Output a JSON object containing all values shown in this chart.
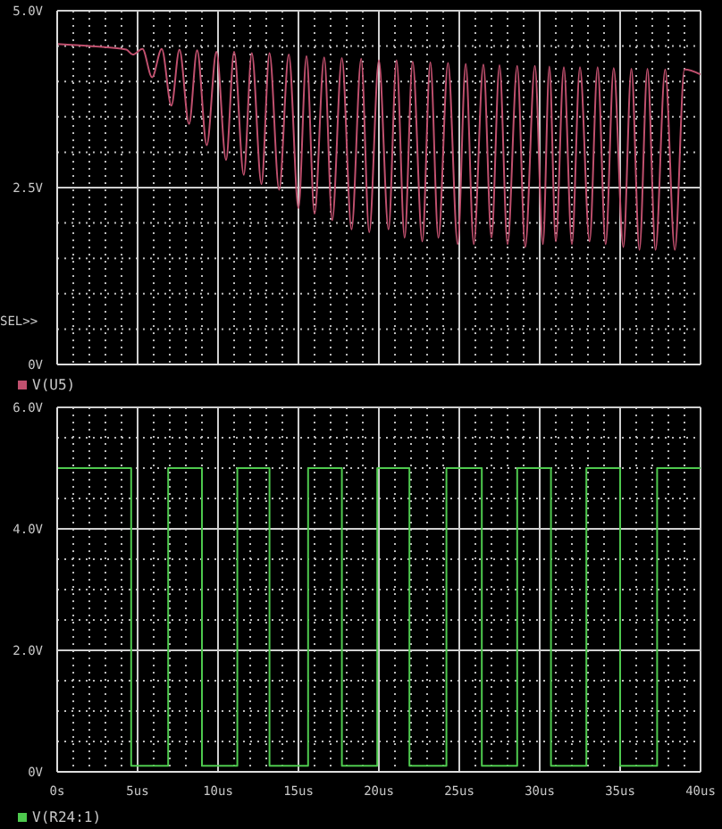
{
  "chart_data": [
    {
      "type": "line",
      "x": [
        0,
        2,
        4.3,
        4.7,
        5.3,
        5.9,
        6.5,
        7.1,
        7.6,
        8.2,
        8.7,
        9.3,
        9.9,
        10.5,
        11.0,
        11.6,
        12.1,
        12.7,
        13.2,
        13.8,
        14.4,
        15.0,
        15.5,
        16.0,
        16.6,
        17.1,
        17.7,
        18.3,
        18.9,
        19.4,
        20.0,
        20.6,
        21.1,
        21.6,
        22.1,
        22.7,
        23.2,
        23.7,
        24.3,
        24.9,
        25.4,
        25.9,
        26.5,
        27.0,
        27.5,
        28.0,
        28.6,
        29.1,
        29.7,
        30.2,
        30.6,
        31.0,
        31.5,
        32.0,
        32.5,
        33.1,
        33.6,
        34.1,
        34.6,
        35.2,
        35.7,
        36.2,
        36.7,
        37.2,
        37.8,
        38.4,
        39.0,
        40
      ],
      "series": [
        {
          "name": "V(U5)",
          "color": "#c0506e",
          "values": [
            4.53,
            4.5,
            4.45,
            4.38,
            4.46,
            4.06,
            4.46,
            3.66,
            4.45,
            3.4,
            4.44,
            3.1,
            4.42,
            2.89,
            4.42,
            2.68,
            4.4,
            2.55,
            4.4,
            2.47,
            4.38,
            2.21,
            4.36,
            2.13,
            4.34,
            2.04,
            4.33,
            1.91,
            4.32,
            1.87,
            4.3,
            1.91,
            4.3,
            1.79,
            4.28,
            1.74,
            4.27,
            1.79,
            4.26,
            1.7,
            4.25,
            1.7,
            4.24,
            1.79,
            4.23,
            1.7,
            4.22,
            1.66,
            4.22,
            1.7,
            4.21,
            1.74,
            4.2,
            1.7,
            4.2,
            1.74,
            4.2,
            1.7,
            4.19,
            1.66,
            4.18,
            1.62,
            4.18,
            1.62,
            4.17,
            1.62,
            4.17,
            4.1
          ]
        }
      ],
      "xlim": [
        0,
        40
      ],
      "xticks": [
        {
          "value": 0,
          "label": null
        },
        {
          "value": 1,
          "label": null
        },
        {
          "value": 2,
          "label": null
        },
        {
          "value": 3,
          "label": null
        },
        {
          "value": 4,
          "label": null
        },
        {
          "value": 5,
          "label": null
        },
        {
          "value": 6,
          "label": null
        },
        {
          "value": 7,
          "label": null
        },
        {
          "value": 8,
          "label": null
        },
        {
          "value": 9,
          "label": null
        },
        {
          "value": 10,
          "label": null
        },
        {
          "value": 11,
          "label": null
        },
        {
          "value": 12,
          "label": null
        },
        {
          "value": 13,
          "label": null
        },
        {
          "value": 14,
          "label": null
        },
        {
          "value": 15,
          "label": null
        },
        {
          "value": 16,
          "label": null
        },
        {
          "value": 17,
          "label": null
        },
        {
          "value": 18,
          "label": null
        },
        {
          "value": 19,
          "label": null
        },
        {
          "value": 20,
          "label": null
        },
        {
          "value": 21,
          "label": null
        },
        {
          "value": 22,
          "label": null
        },
        {
          "value": 23,
          "label": null
        },
        {
          "value": 24,
          "label": null
        },
        {
          "value": 25,
          "label": null
        },
        {
          "value": 26,
          "label": null
        },
        {
          "value": 27,
          "label": null
        },
        {
          "value": 28,
          "label": null
        },
        {
          "value": 29,
          "label": null
        },
        {
          "value": 30,
          "label": null
        },
        {
          "value": 31,
          "label": null
        },
        {
          "value": 32,
          "label": null
        },
        {
          "value": 33,
          "label": null
        },
        {
          "value": 34,
          "label": null
        },
        {
          "value": 35,
          "label": null
        },
        {
          "value": 36,
          "label": null
        },
        {
          "value": 37,
          "label": null
        },
        {
          "value": 38,
          "label": null
        },
        {
          "value": 39,
          "label": null
        },
        {
          "value": 40,
          "label": null
        }
      ],
      "ylim": [
        0,
        5
      ],
      "yticks": [
        {
          "value": 0,
          "label": "0V"
        },
        {
          "value": 0.5,
          "label": null
        },
        {
          "value": 1,
          "label": null
        },
        {
          "value": 1.5,
          "label": null
        },
        {
          "value": 2,
          "label": null
        },
        {
          "value": 2.5,
          "label": "2.5V"
        },
        {
          "value": 3,
          "label": null
        },
        {
          "value": 3.5,
          "label": null
        },
        {
          "value": 4,
          "label": null
        },
        {
          "value": 4.5,
          "label": null
        },
        {
          "value": 5,
          "label": "5.0V"
        }
      ],
      "grid": true,
      "legend": "bottom left",
      "tick_labels": "y",
      "marker": "none",
      "annotations": [
        "SEL>>"
      ]
    },
    {
      "type": "step",
      "x": [
        0,
        4.6,
        6.9,
        9.0,
        11.2,
        13.2,
        15.6,
        17.7,
        19.9,
        21.9,
        24.2,
        26.4,
        28.6,
        30.7,
        32.9,
        35.0,
        37.3,
        40
      ],
      "series": [
        {
          "name": "V(R24:1)",
          "color": "#4ec94e",
          "values": [
            5.0,
            0.1,
            5.0,
            0.1,
            5.0,
            0.1,
            5.0,
            0.1,
            5.0,
            0.1,
            5.0,
            0.1,
            5.0,
            0.1,
            5.0,
            0.1,
            5.0,
            5.0
          ]
        }
      ],
      "xlim": [
        0,
        40
      ],
      "xticks": [
        {
          "value": 0,
          "label": "0s"
        },
        {
          "value": 1,
          "label": null
        },
        {
          "value": 2,
          "label": null
        },
        {
          "value": 3,
          "label": null
        },
        {
          "value": 4,
          "label": null
        },
        {
          "value": 5,
          "label": "5us"
        },
        {
          "value": 6,
          "label": null
        },
        {
          "value": 7,
          "label": null
        },
        {
          "value": 8,
          "label": null
        },
        {
          "value": 9,
          "label": null
        },
        {
          "value": 10,
          "label": "10us"
        },
        {
          "value": 11,
          "label": null
        },
        {
          "value": 12,
          "label": null
        },
        {
          "value": 13,
          "label": null
        },
        {
          "value": 14,
          "label": null
        },
        {
          "value": 15,
          "label": "15us"
        },
        {
          "value": 16,
          "label": null
        },
        {
          "value": 17,
          "label": null
        },
        {
          "value": 18,
          "label": null
        },
        {
          "value": 19,
          "label": null
        },
        {
          "value": 20,
          "label": "20us"
        },
        {
          "value": 21,
          "label": null
        },
        {
          "value": 22,
          "label": null
        },
        {
          "value": 23,
          "label": null
        },
        {
          "value": 24,
          "label": null
        },
        {
          "value": 25,
          "label": "25us"
        },
        {
          "value": 26,
          "label": null
        },
        {
          "value": 27,
          "label": null
        },
        {
          "value": 28,
          "label": null
        },
        {
          "value": 29,
          "label": null
        },
        {
          "value": 30,
          "label": "30us"
        },
        {
          "value": 31,
          "label": null
        },
        {
          "value": 32,
          "label": null
        },
        {
          "value": 33,
          "label": null
        },
        {
          "value": 34,
          "label": null
        },
        {
          "value": 35,
          "label": "35us"
        },
        {
          "value": 36,
          "label": null
        },
        {
          "value": 37,
          "label": null
        },
        {
          "value": 38,
          "label": null
        },
        {
          "value": 39,
          "label": null
        },
        {
          "value": 40,
          "label": "40us"
        }
      ],
      "ylim": [
        0,
        6
      ],
      "yticks": [
        {
          "value": 0,
          "label": "0V"
        },
        {
          "value": 0.5,
          "label": null
        },
        {
          "value": 1,
          "label": null
        },
        {
          "value": 1.5,
          "label": null
        },
        {
          "value": 2,
          "label": "2.0V"
        },
        {
          "value": 2.5,
          "label": null
        },
        {
          "value": 3,
          "label": null
        },
        {
          "value": 3.5,
          "label": null
        },
        {
          "value": 4,
          "label": "4.0V"
        },
        {
          "value": 4.5,
          "label": null
        },
        {
          "value": 5,
          "label": null
        },
        {
          "value": 5.5,
          "label": null
        },
        {
          "value": 6,
          "label": "6.0V"
        }
      ],
      "grid": true,
      "legend": "bottom left",
      "marker": "none"
    }
  ]
}
